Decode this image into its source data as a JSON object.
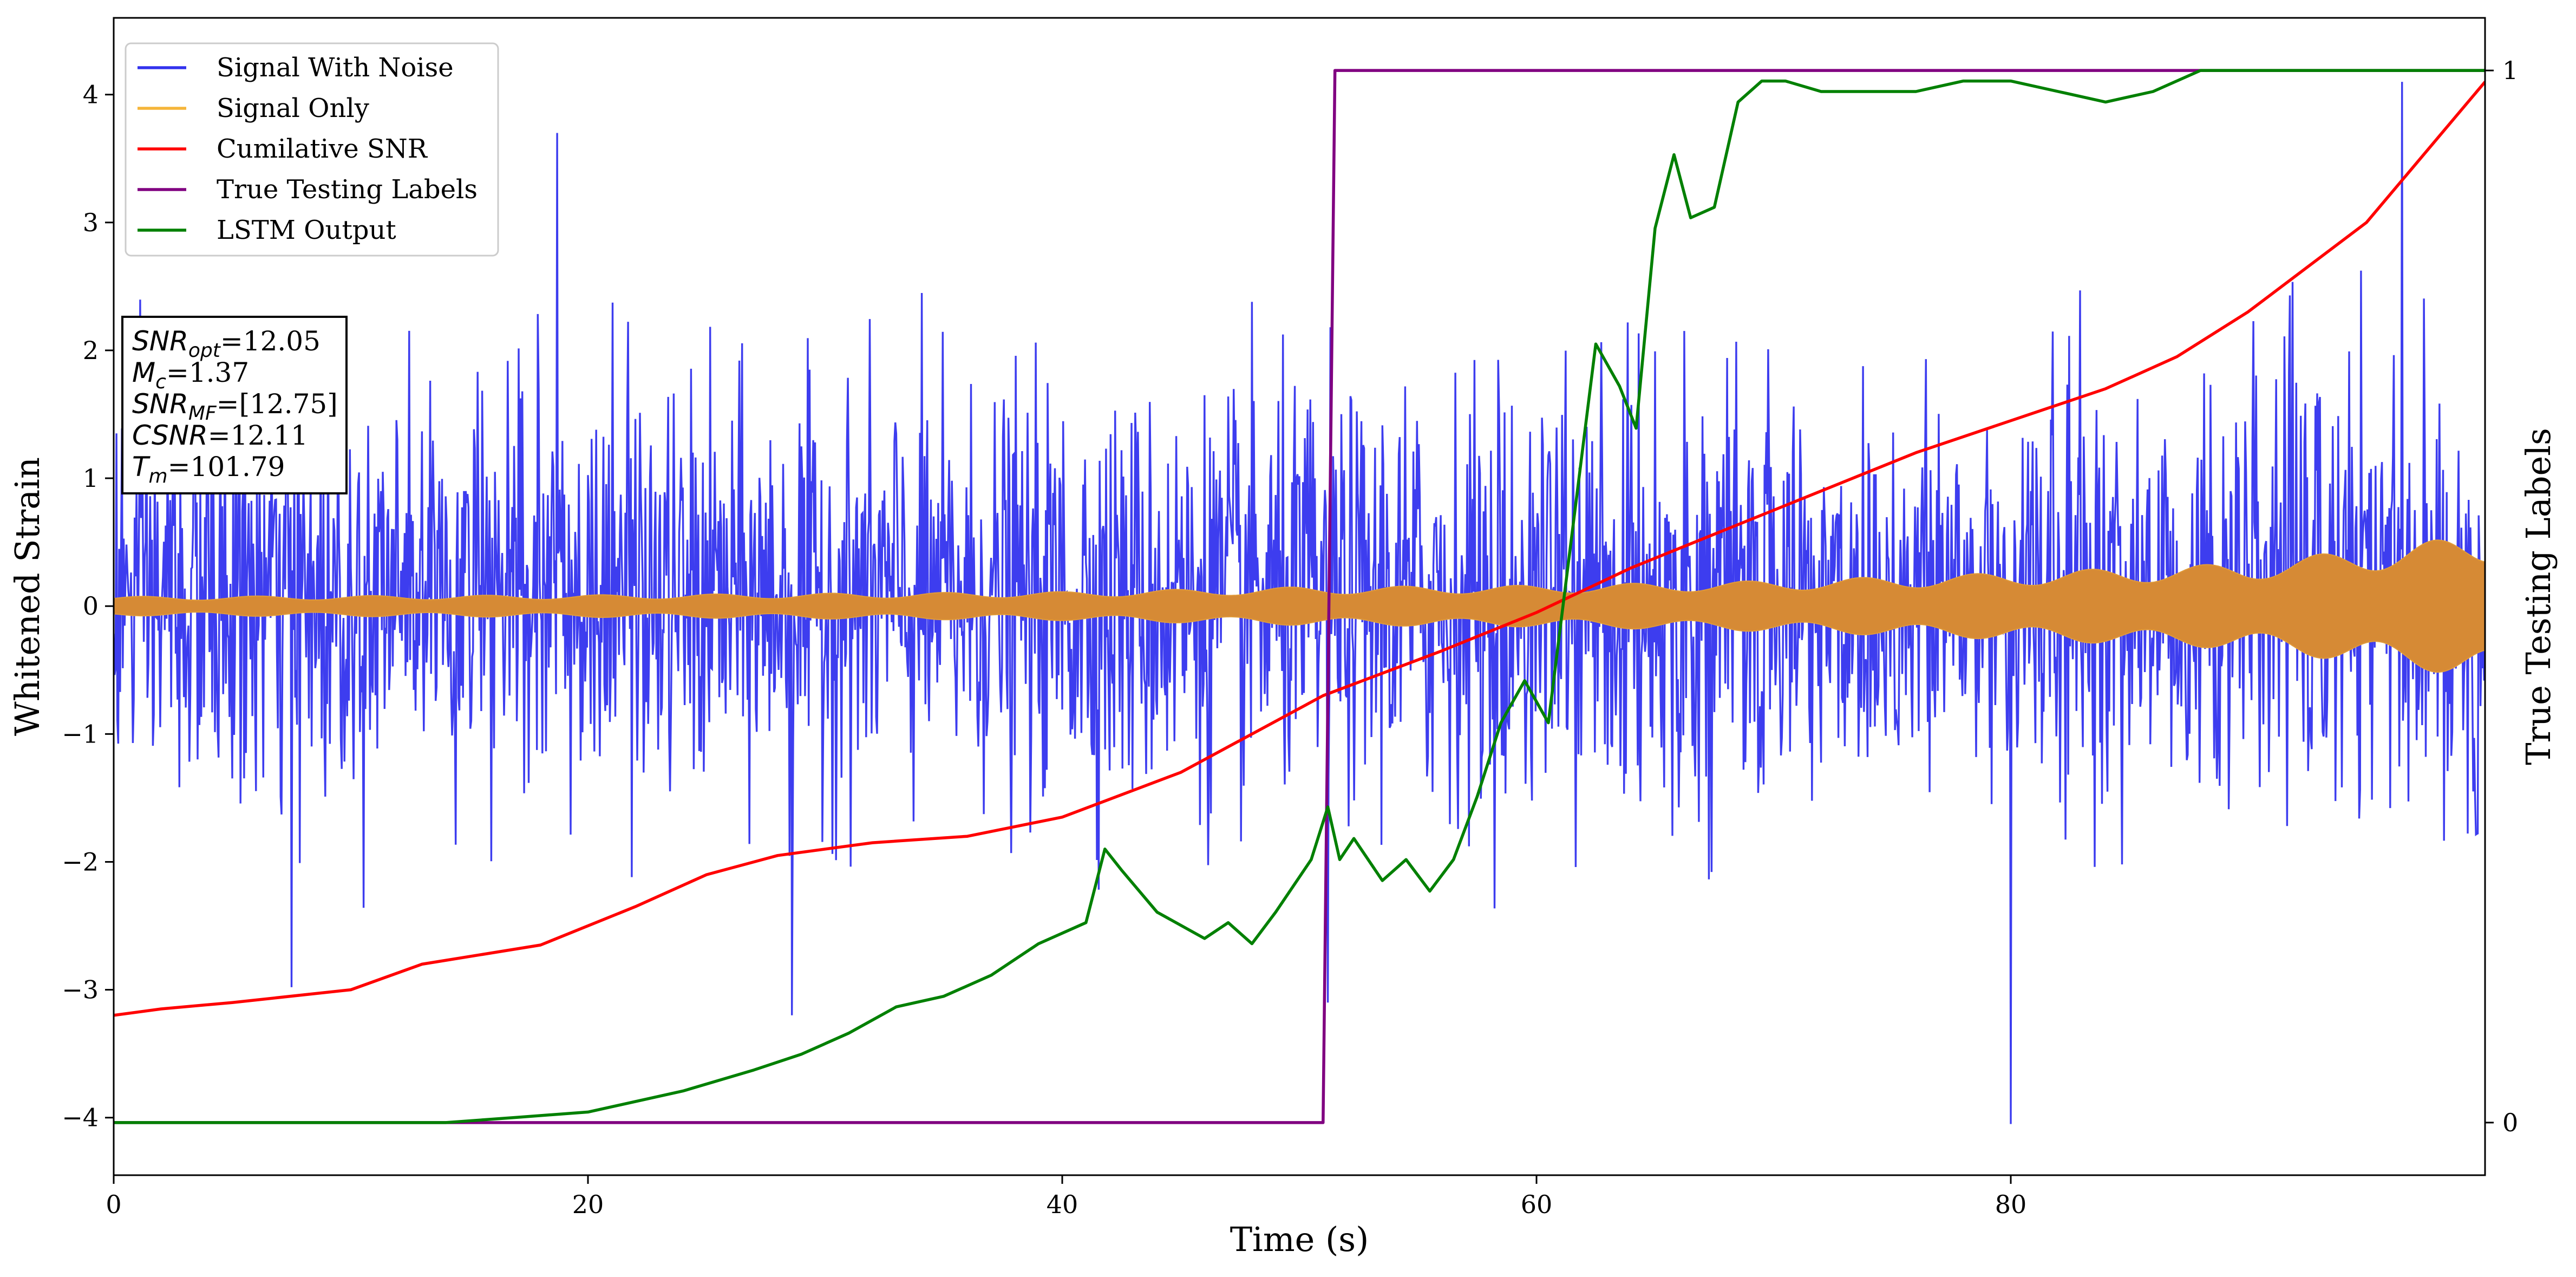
{
  "chart_data": {
    "type": "line",
    "xlabel": "Time (s)",
    "ylabel_left": "Whitened Strain",
    "ylabel_right": "True Testing Labels",
    "xlim": [
      0,
      100
    ],
    "ylim_left": [
      -4.45,
      4.6
    ],
    "ylim_right": [
      -0.05,
      1.05
    ],
    "x_ticks": [
      0,
      20,
      40,
      60,
      80
    ],
    "x_tick_labels": [
      "0",
      "20",
      "40",
      "60",
      "80"
    ],
    "y_left_ticks": [
      4,
      3,
      2,
      1,
      0,
      -1,
      -2,
      -3,
      -4
    ],
    "y_left_tick_labels": [
      "4",
      "3",
      "2",
      "1",
      "0",
      "−1",
      "−2",
      "−3",
      "−4"
    ],
    "y_right_ticks": [
      1,
      0
    ],
    "y_right_tick_labels": [
      "1",
      "0"
    ],
    "legend_position": "top-left",
    "grid": false,
    "series": [
      {
        "name": "Signal With Noise",
        "color": "#3333ee",
        "axis": "left",
        "kind": "noise",
        "typical_range": [
          -1.6,
          2.0
        ],
        "extremes": [
          {
            "x": 7.5,
            "y": -2.98
          },
          {
            "x": 18.7,
            "y": 3.7
          },
          {
            "x": 28.6,
            "y": -3.2
          },
          {
            "x": 51.2,
            "y": -3.1
          },
          {
            "x": 80.0,
            "y": -4.05
          },
          {
            "x": 96.5,
            "y": 4.1
          }
        ]
      },
      {
        "name": "Signal Only",
        "color": "#f5a623",
        "axis": "left",
        "kind": "envelope",
        "x": [
          0,
          20,
          40,
          50,
          60,
          70,
          80,
          90,
          100
        ],
        "amplitude": [
          0.06,
          0.07,
          0.09,
          0.12,
          0.13,
          0.16,
          0.21,
          0.27,
          0.45
        ]
      },
      {
        "name": "Cumilative SNR",
        "color": "#ff0000",
        "axis": "left",
        "x": [
          0,
          2,
          5,
          10,
          13,
          18,
          22,
          25,
          28,
          32,
          36,
          40,
          45,
          51,
          56,
          60,
          64,
          68,
          72,
          76,
          80,
          84,
          87,
          90,
          95,
          100
        ],
        "y": [
          -3.2,
          -3.15,
          -3.1,
          -3.0,
          -2.8,
          -2.65,
          -2.35,
          -2.1,
          -1.95,
          -1.85,
          -1.8,
          -1.65,
          -1.3,
          -0.7,
          -0.35,
          -0.05,
          0.3,
          0.6,
          0.9,
          1.2,
          1.45,
          1.7,
          1.95,
          2.3,
          3.0,
          4.1
        ]
      },
      {
        "name": "True Testing Labels",
        "color": "#800080",
        "axis": "right",
        "x": [
          0,
          51.0,
          51.5,
          100
        ],
        "y": [
          0,
          0,
          1,
          1
        ]
      },
      {
        "name": "LSTM Output",
        "color": "#008000",
        "axis": "right",
        "x": [
          0,
          14,
          17,
          20,
          24,
          27,
          29,
          31,
          33,
          35,
          37,
          39,
          41,
          41.8,
          42.5,
          44,
          46,
          47,
          48,
          49,
          50.5,
          51.2,
          51.7,
          52.3,
          53.5,
          54.5,
          55.5,
          56.5,
          57.5,
          58.5,
          59.5,
          60.5,
          61.5,
          62.5,
          63.5,
          64.2,
          65,
          65.8,
          66.5,
          67.5,
          68.5,
          69.5,
          70.5,
          72,
          74,
          76,
          78,
          80,
          82,
          84,
          86,
          88,
          90,
          95,
          100
        ],
        "y": [
          0,
          0,
          0.005,
          0.01,
          0.03,
          0.05,
          0.065,
          0.085,
          0.11,
          0.12,
          0.14,
          0.17,
          0.19,
          0.26,
          0.24,
          0.2,
          0.175,
          0.19,
          0.17,
          0.2,
          0.25,
          0.3,
          0.25,
          0.27,
          0.23,
          0.25,
          0.22,
          0.25,
          0.31,
          0.38,
          0.42,
          0.38,
          0.56,
          0.74,
          0.7,
          0.66,
          0.85,
          0.92,
          0.86,
          0.87,
          0.97,
          0.99,
          0.99,
          0.98,
          0.98,
          0.98,
          0.99,
          0.99,
          0.98,
          0.97,
          0.98,
          1.0,
          1.0,
          1.0,
          1.0
        ]
      }
    ],
    "annotation": {
      "lines": [
        {
          "label": "SNR",
          "sub": "opt",
          "value": "=12.05"
        },
        {
          "label": "M",
          "sub": "c",
          "value": "=1.37"
        },
        {
          "label": "SNR",
          "sub": "MF",
          "value": "=[12.75]"
        },
        {
          "label": "CSNR",
          "sub": "",
          "value": "=12.11"
        },
        {
          "label": "T",
          "sub": "m",
          "value": "=101.79"
        }
      ]
    }
  }
}
